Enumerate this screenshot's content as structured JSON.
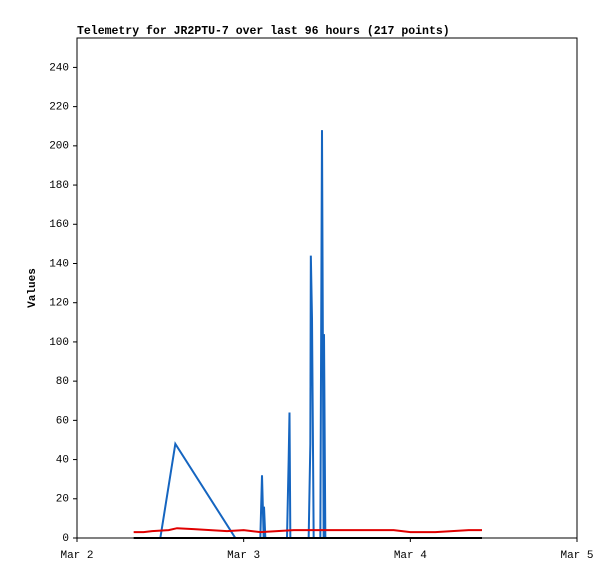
{
  "chart_data": {
    "type": "line",
    "title": "Telemetry for JR2PTU-7 over last 96 hours (217 points)",
    "y_label": "Values",
    "xlim": [
      0,
      3
    ],
    "xticks": [
      {
        "value": 0,
        "label": "Mar 2"
      },
      {
        "value": 1,
        "label": "Mar 3"
      },
      {
        "value": 2,
        "label": "Mar 4"
      },
      {
        "value": 3,
        "label": "Mar 5"
      }
    ],
    "ylim": [
      0,
      255
    ],
    "yticks": [
      0,
      20,
      40,
      60,
      80,
      100,
      120,
      140,
      160,
      180,
      200,
      220,
      240
    ],
    "grid": false,
    "series": [
      {
        "name": "blue",
        "color": "#1565c0",
        "x": [
          0.5,
          0.59,
          0.95,
          1.1,
          1.11,
          1.12,
          1.122,
          1.13,
          1.26,
          1.27,
          1.275,
          1.28,
          1.39,
          1.4,
          1.403,
          1.41,
          1.42,
          1.46,
          1.47,
          1.48,
          1.482,
          1.49
        ],
        "values": [
          0,
          48,
          0,
          0,
          32,
          0,
          16,
          0,
          0,
          40,
          64,
          0,
          0,
          48,
          144,
          112,
          0,
          0,
          208,
          0,
          104,
          0
        ]
      },
      {
        "name": "red",
        "color": "#e00000",
        "x": [
          0.34,
          0.4,
          0.45,
          0.55,
          0.6,
          0.7,
          0.9,
          1.0,
          1.1,
          1.3,
          1.5,
          1.9,
          2.0,
          2.15,
          2.25,
          2.35,
          2.43
        ],
        "values": [
          3,
          3,
          3.5,
          4,
          5,
          4.5,
          3.5,
          4,
          3,
          4,
          4,
          4,
          3,
          3,
          3.5,
          4,
          4
        ]
      },
      {
        "name": "black",
        "color": "#000000",
        "x": [
          0.34,
          2.43
        ],
        "values": [
          0,
          0
        ]
      }
    ]
  }
}
